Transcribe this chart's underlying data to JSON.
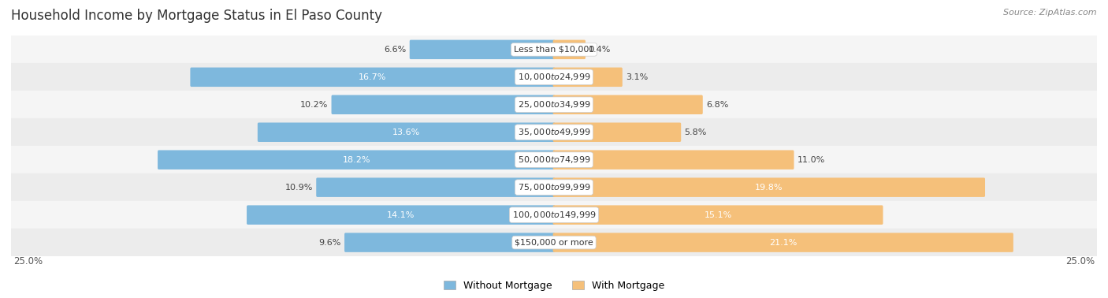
{
  "title": "Household Income by Mortgage Status in El Paso County",
  "source": "Source: ZipAtlas.com",
  "categories": [
    "Less than $10,000",
    "$10,000 to $24,999",
    "$25,000 to $34,999",
    "$35,000 to $49,999",
    "$50,000 to $74,999",
    "$75,000 to $99,999",
    "$100,000 to $149,999",
    "$150,000 or more"
  ],
  "without_mortgage": [
    6.6,
    16.7,
    10.2,
    13.6,
    18.2,
    10.9,
    14.1,
    9.6
  ],
  "with_mortgage": [
    1.4,
    3.1,
    6.8,
    5.8,
    11.0,
    19.8,
    15.1,
    21.1
  ],
  "color_without": "#7eb8dd",
  "color_with": "#f5c07a",
  "row_color_even": "#f5f5f5",
  "row_color_odd": "#ececec",
  "max_val": 25.0,
  "legend_without": "Without Mortgage",
  "legend_with": "With Mortgage",
  "title_fontsize": 12,
  "source_fontsize": 8,
  "label_fontsize": 8,
  "cat_fontsize": 8,
  "bar_height": 0.6
}
